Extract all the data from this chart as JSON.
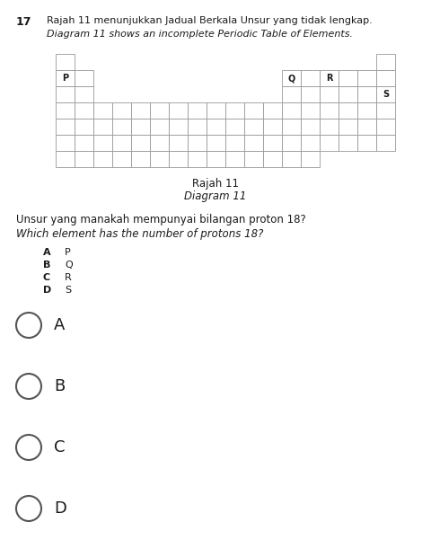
{
  "title_number": "17",
  "title_line1": "Rajah 11 menunjukkan Jadual Berkala Unsur yang tidak lengkap.",
  "title_line2": "Diagram 11 shows an incomplete Periodic Table of Elements.",
  "caption_line1": "Rajah 11",
  "caption_line2": "Diagram 11",
  "question_line1": "Unsur yang manakah mempunyai bilangan proton 18?",
  "question_line2": "Which element has the number of protons 18?",
  "options": [
    {
      "letter": "A",
      "text": "P"
    },
    {
      "letter": "B",
      "text": "Q"
    },
    {
      "letter": "C",
      "text": "R"
    },
    {
      "letter": "D",
      "text": "S"
    }
  ],
  "answer_options": [
    "A",
    "B",
    "C",
    "D"
  ],
  "grid_color": "#999999",
  "text_color": "#1a1a1a",
  "bg_color": "#ffffff",
  "table_labels": [
    {
      "text": "P",
      "col": 0,
      "row": 1
    },
    {
      "text": "Q",
      "col": 12,
      "row": 1
    },
    {
      "text": "R",
      "col": 14,
      "row": 1
    },
    {
      "text": "S",
      "col": 17,
      "row": 2
    }
  ]
}
